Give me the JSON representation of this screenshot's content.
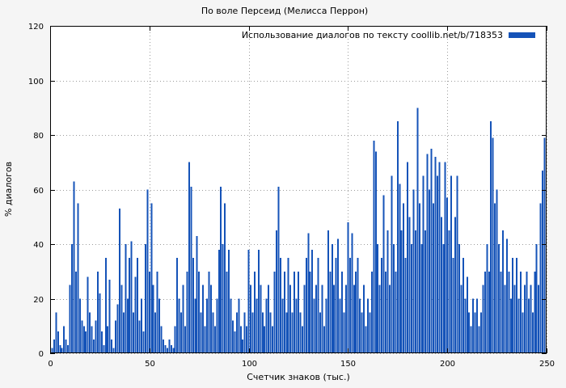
{
  "page": {
    "background": "#f5f5f5",
    "plot_background": "#ffffff"
  },
  "chart_data": {
    "type": "bar",
    "title": "По воле Персеид (Мелисса Перрон)",
    "legend": "Использование диалогов по тексту coollib.net/b/718353",
    "xlabel": "Счетчик знаков (тыс.)",
    "ylabel": "% диалогов",
    "xlim": [
      0,
      250
    ],
    "ylim": [
      0,
      120
    ],
    "xticks": [
      0,
      50,
      100,
      150,
      200,
      250
    ],
    "yticks": [
      0,
      20,
      40,
      60,
      80,
      100,
      120
    ],
    "grid": true,
    "legend_position": "top-right",
    "bar_color": "#1553b8",
    "x_step": 1,
    "values": [
      0,
      2,
      5,
      15,
      8,
      3,
      2,
      10,
      5,
      3,
      25,
      40,
      63,
      30,
      55,
      20,
      12,
      10,
      8,
      28,
      15,
      10,
      5,
      12,
      30,
      22,
      8,
      3,
      35,
      10,
      27,
      5,
      2,
      12,
      18,
      53,
      25,
      15,
      40,
      20,
      35,
      41,
      15,
      28,
      35,
      12,
      20,
      8,
      40,
      60,
      30,
      55,
      25,
      15,
      30,
      20,
      10,
      5,
      3,
      2,
      5,
      3,
      2,
      10,
      35,
      20,
      15,
      25,
      10,
      30,
      70,
      61,
      35,
      20,
      43,
      30,
      15,
      25,
      10,
      20,
      30,
      25,
      15,
      10,
      20,
      38,
      61,
      40,
      55,
      30,
      38,
      20,
      12,
      8,
      15,
      20,
      10,
      5,
      15,
      10,
      38,
      25,
      15,
      30,
      20,
      38,
      25,
      15,
      10,
      20,
      25,
      15,
      10,
      30,
      45,
      61,
      35,
      20,
      30,
      15,
      35,
      25,
      15,
      30,
      20,
      30,
      15,
      10,
      25,
      35,
      44,
      30,
      38,
      20,
      25,
      35,
      15,
      25,
      10,
      20,
      45,
      30,
      40,
      25,
      35,
      42,
      20,
      30,
      15,
      25,
      48,
      35,
      44,
      25,
      30,
      35,
      20,
      15,
      25,
      10,
      20,
      15,
      30,
      78,
      74,
      40,
      25,
      35,
      58,
      30,
      45,
      25,
      65,
      40,
      30,
      85,
      62,
      45,
      55,
      35,
      70,
      50,
      40,
      60,
      45,
      90,
      55,
      40,
      65,
      45,
      73,
      60,
      75,
      55,
      72,
      65,
      70,
      50,
      40,
      70,
      57,
      45,
      65,
      35,
      50,
      65,
      40,
      25,
      35,
      20,
      28,
      15,
      10,
      20,
      15,
      20,
      10,
      15,
      25,
      30,
      40,
      30,
      85,
      79,
      55,
      60,
      40,
      30,
      45,
      25,
      42,
      30,
      20,
      35,
      25,
      35,
      20,
      30,
      15,
      25,
      30,
      20,
      25,
      15,
      30,
      40,
      25,
      55,
      67,
      79
    ]
  }
}
